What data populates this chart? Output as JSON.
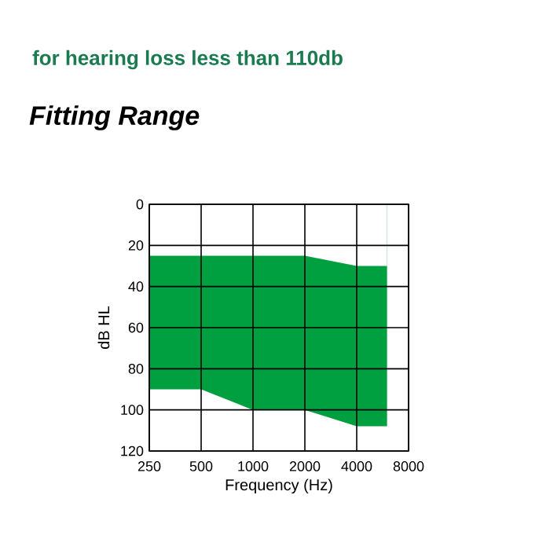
{
  "chart_data": {
    "type": "area",
    "title": "Fitting Range",
    "subtitle": "for hearing loss less than 110db",
    "xlabel": "Frequency (Hz)",
    "ylabel": "dB HL",
    "x": [
      250,
      500,
      1000,
      2000,
      4000,
      6000
    ],
    "series": [
      {
        "color": "#00a040",
        "values": [
          90,
          90,
          100,
          100,
          108,
          108
        ]
      },
      {
        "color": "#ffffff",
        "values": [
          25,
          25,
          25,
          25,
          30,
          30
        ]
      }
    ],
    "xlim": [
      250,
      8000
    ],
    "xticks": [
      250,
      500,
      1000,
      2000,
      4000,
      8000
    ],
    "ylim": [
      120,
      0
    ],
    "yticks": [
      0,
      20,
      40,
      60,
      80,
      100,
      120
    ],
    "log": "x",
    "grid": true
  }
}
